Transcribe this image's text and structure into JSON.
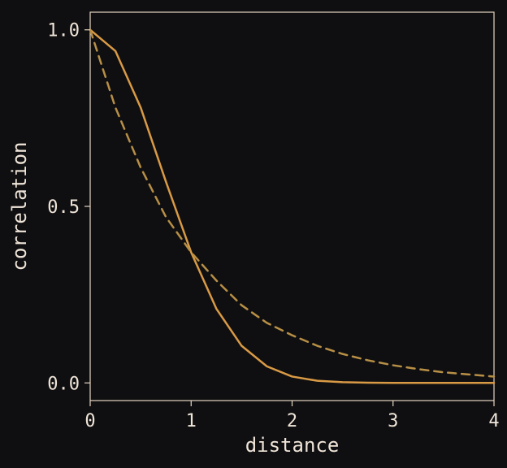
{
  "chart_data": {
    "type": "line",
    "title": "",
    "xlabel": "distance",
    "ylabel": "correlation",
    "xlim": [
      0,
      4
    ],
    "ylim": [
      -0.05,
      1.05
    ],
    "x_ticks": [
      {
        "value": 0,
        "label": "0"
      },
      {
        "value": 1,
        "label": "1"
      },
      {
        "value": 2,
        "label": "2"
      },
      {
        "value": 3,
        "label": "3"
      },
      {
        "value": 4,
        "label": "4"
      }
    ],
    "y_ticks": [
      {
        "value": 0.0,
        "label": "0.0"
      },
      {
        "value": 0.5,
        "label": "0.5"
      },
      {
        "value": 1.0,
        "label": "1.0"
      }
    ],
    "grid": false,
    "legend": "none",
    "series": [
      {
        "style": "solid",
        "color": "#d99a45",
        "x": [
          0,
          0.25,
          0.5,
          0.75,
          1.0,
          1.25,
          1.5,
          1.75,
          2.0,
          2.25,
          2.5,
          2.75,
          3.0,
          3.25,
          3.5,
          3.75,
          4.0
        ],
        "y": [
          1.0,
          0.94,
          0.78,
          0.57,
          0.37,
          0.21,
          0.105,
          0.047,
          0.018,
          0.006,
          0.002,
          0.0005,
          0.0001,
          0.0,
          0.0,
          0.0,
          0.0
        ]
      },
      {
        "style": "dashed",
        "color": "#b88f46",
        "x": [
          0,
          0.25,
          0.5,
          0.75,
          1.0,
          1.25,
          1.5,
          1.75,
          2.0,
          2.25,
          2.5,
          2.75,
          3.0,
          3.25,
          3.5,
          3.75,
          4.0
        ],
        "y": [
          1.0,
          0.78,
          0.61,
          0.47,
          0.37,
          0.29,
          0.22,
          0.17,
          0.135,
          0.105,
          0.082,
          0.064,
          0.05,
          0.039,
          0.03,
          0.024,
          0.018
        ]
      }
    ]
  }
}
